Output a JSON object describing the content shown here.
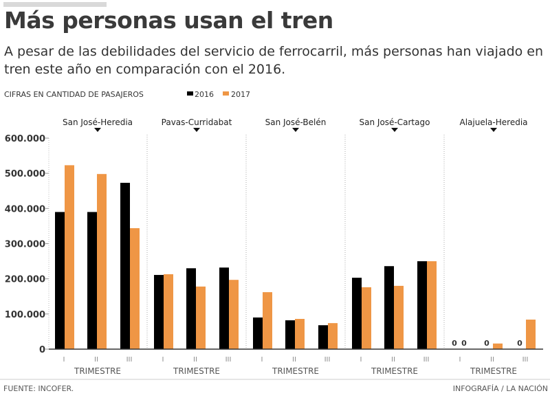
{
  "title": "Más personas usan el tren",
  "subtitle": "A pesar de las debilidades del servicio de ferrocarril, más personas han viajado en tren este año en comparación con el 2016.",
  "source": "FUENTE: INCOFER.",
  "credit": "INFOGRAFÍA / LA NACIÓN",
  "chart_data": {
    "type": "bar",
    "ylabel": "CIFRAS EN CANTIDAD DE PASAJEROS",
    "ylim": [
      0,
      600000
    ],
    "yticks": [
      0,
      100000,
      200000,
      300000,
      400000,
      500000,
      600000
    ],
    "ytick_labels": [
      "0",
      "100.000",
      "200.000",
      "300.000",
      "400.000",
      "500.000",
      "600.000"
    ],
    "legend_placement": "top",
    "grid": false,
    "colors": {
      "2016": "#000000",
      "2017": "#ef9645"
    },
    "categories": [
      "I",
      "II",
      "III"
    ],
    "xlabel": "TRIMESTRE",
    "groups": [
      {
        "name": "San José-Heredia",
        "series": [
          {
            "name": "2016",
            "values": [
              390000,
              390000,
              473000
            ]
          },
          {
            "name": "2017",
            "values": [
              523000,
              498000,
              344000
            ]
          }
        ]
      },
      {
        "name": "Pavas-Curridabat",
        "series": [
          {
            "name": "2016",
            "values": [
              211000,
              230000,
              232000
            ]
          },
          {
            "name": "2017",
            "values": [
              213000,
              178000,
              197000
            ]
          }
        ]
      },
      {
        "name": "San José-Belén",
        "series": [
          {
            "name": "2016",
            "values": [
              90000,
              82000,
              68000
            ]
          },
          {
            "name": "2017",
            "values": [
              162000,
              86000,
              74000
            ]
          }
        ]
      },
      {
        "name": "San José-Cartago",
        "series": [
          {
            "name": "2016",
            "values": [
              203000,
              236000,
              250000
            ]
          },
          {
            "name": "2017",
            "values": [
              176000,
              180000,
              250000
            ]
          }
        ]
      },
      {
        "name": "Alajuela-Heredia",
        "series": [
          {
            "name": "2016",
            "values": [
              0,
              0,
              0
            ]
          },
          {
            "name": "2017",
            "values": [
              0,
              16000,
              84000
            ]
          }
        ]
      }
    ]
  }
}
